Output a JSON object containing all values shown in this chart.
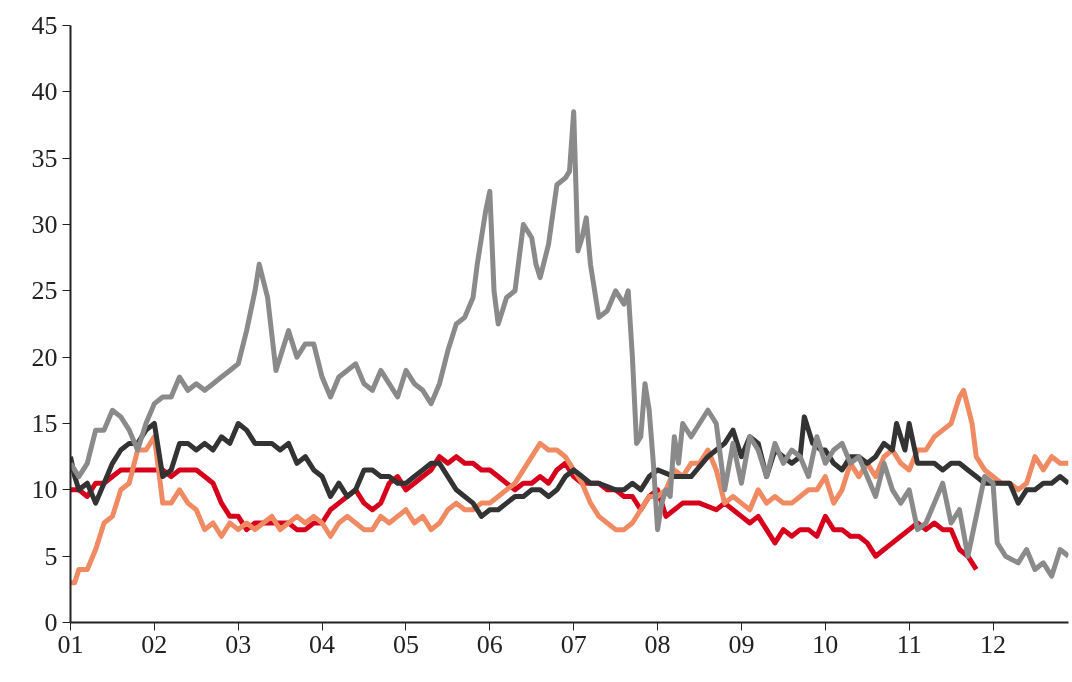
{
  "chart_data": {
    "type": "line",
    "xlim": [
      1,
      12.9
    ],
    "ylim": [
      0,
      45
    ],
    "xticks": [
      {
        "value": 1,
        "label": "01"
      },
      {
        "value": 2,
        "label": "02"
      },
      {
        "value": 3,
        "label": "03"
      },
      {
        "value": 4,
        "label": "04"
      },
      {
        "value": 5,
        "label": "05"
      },
      {
        "value": 6,
        "label": "06"
      },
      {
        "value": 7,
        "label": "07"
      },
      {
        "value": 8,
        "label": "08"
      },
      {
        "value": 9,
        "label": "09"
      },
      {
        "value": 10,
        "label": "10"
      },
      {
        "value": 11,
        "label": "11"
      },
      {
        "value": 12,
        "label": "12"
      }
    ],
    "yticks": [
      0,
      5,
      10,
      15,
      20,
      25,
      30,
      35,
      40,
      45
    ],
    "grid": false,
    "line_style": "solid",
    "marker": "none",
    "series": [
      {
        "color": "#d7001c",
        "x": [
          1.0,
          1.1,
          1.2,
          1.3,
          1.4,
          1.5,
          1.6,
          1.8,
          2.0,
          2.1,
          2.2,
          2.3,
          2.4,
          2.5,
          2.6,
          2.7,
          2.8,
          2.9,
          3.0,
          3.1,
          3.2,
          3.4,
          3.6,
          3.7,
          3.8,
          3.9,
          4.0,
          4.1,
          4.2,
          4.3,
          4.4,
          4.5,
          4.6,
          4.7,
          4.8,
          4.9,
          5.0,
          5.1,
          5.2,
          5.3,
          5.4,
          5.5,
          5.6,
          5.7,
          5.8,
          5.9,
          6.0,
          6.1,
          6.2,
          6.3,
          6.4,
          6.5,
          6.6,
          6.7,
          6.8,
          6.9,
          7.0,
          7.1,
          7.2,
          7.3,
          7.4,
          7.5,
          7.6,
          7.7,
          7.8,
          7.9,
          8.0,
          8.1,
          8.2,
          8.3,
          8.5,
          8.7,
          8.8,
          8.9,
          9.0,
          9.1,
          9.2,
          9.3,
          9.4,
          9.5,
          9.6,
          9.7,
          9.8,
          9.9,
          10.0,
          10.1,
          10.2,
          10.3,
          10.4,
          10.5,
          10.6,
          10.7,
          10.8,
          10.9,
          11.0,
          11.1,
          11.2,
          11.3,
          11.4,
          11.5,
          11.6,
          11.7,
          11.8
        ],
        "values": [
          10,
          10,
          9.5,
          10.5,
          10.5,
          11,
          11.5,
          11.5,
          11.5,
          11.5,
          11,
          11.5,
          11.5,
          11.5,
          11,
          10.5,
          9,
          8,
          8,
          7,
          7.5,
          7.5,
          7.5,
          7,
          7,
          7.5,
          7.5,
          8.5,
          9,
          9.5,
          10,
          9,
          8.5,
          9,
          10.5,
          11,
          10,
          10.5,
          11,
          11.5,
          12.5,
          12,
          12.5,
          12,
          12,
          11.5,
          11.5,
          11,
          10.5,
          10,
          10.5,
          10.5,
          11,
          10.5,
          11.5,
          12,
          11,
          10.5,
          10.5,
          10.5,
          10,
          10,
          9.5,
          9.5,
          8.5,
          9.5,
          10,
          8,
          8.5,
          9,
          9,
          8.5,
          9,
          8.5,
          8,
          7.5,
          8,
          7,
          6,
          7,
          6.5,
          7,
          7,
          6.5,
          8,
          7,
          7,
          6.5,
          6.5,
          6,
          5,
          5.5,
          6,
          6.5,
          7,
          7.5,
          7,
          7.5,
          7,
          7,
          5.5,
          5,
          4
        ]
      },
      {
        "color": "#ef8a62",
        "x": [
          1.0,
          1.05,
          1.1,
          1.2,
          1.3,
          1.4,
          1.5,
          1.6,
          1.7,
          1.8,
          1.9,
          2.0,
          2.1,
          2.2,
          2.3,
          2.4,
          2.5,
          2.6,
          2.7,
          2.8,
          2.9,
          3.0,
          3.1,
          3.2,
          3.3,
          3.4,
          3.5,
          3.6,
          3.7,
          3.8,
          3.9,
          4.0,
          4.1,
          4.2,
          4.3,
          4.4,
          4.5,
          4.6,
          4.7,
          4.8,
          4.9,
          5.0,
          5.1,
          5.2,
          5.3,
          5.4,
          5.5,
          5.6,
          5.7,
          5.8,
          5.9,
          6.0,
          6.1,
          6.2,
          6.3,
          6.4,
          6.5,
          6.6,
          6.7,
          6.8,
          6.9,
          7.0,
          7.1,
          7.2,
          7.3,
          7.4,
          7.5,
          7.6,
          7.7,
          7.8,
          7.9,
          8.0,
          8.1,
          8.2,
          8.3,
          8.4,
          8.5,
          8.6,
          8.7,
          8.8,
          8.9,
          9.0,
          9.1,
          9.2,
          9.3,
          9.4,
          9.5,
          9.6,
          9.7,
          9.8,
          9.9,
          10.0,
          10.1,
          10.2,
          10.3,
          10.4,
          10.5,
          10.6,
          10.7,
          10.8,
          10.9,
          11.0,
          11.1,
          11.2,
          11.3,
          11.4,
          11.5,
          11.6,
          11.65,
          11.75,
          11.8,
          11.9,
          12.0,
          12.1,
          12.2,
          12.3,
          12.4,
          12.5,
          12.6,
          12.7,
          12.8,
          12.9
        ],
        "values": [
          3,
          3,
          4,
          4,
          5.5,
          7.5,
          8,
          10,
          10.5,
          13,
          13,
          14,
          9,
          9,
          10,
          9,
          8.5,
          7,
          7.5,
          6.5,
          7.5,
          7,
          7.5,
          7,
          7.5,
          8,
          7,
          7.5,
          8,
          7.5,
          8,
          7.5,
          6.5,
          7.5,
          8,
          7.5,
          7,
          7,
          8,
          7.5,
          8,
          8.5,
          7.5,
          8,
          7,
          7.5,
          8.5,
          9,
          8.5,
          8.5,
          9,
          9,
          9.5,
          10,
          10.5,
          11.5,
          12.5,
          13.5,
          13,
          13,
          12.5,
          11.5,
          10.5,
          9,
          8,
          7.5,
          7,
          7,
          7.5,
          8.5,
          9.5,
          9.5,
          10,
          11.5,
          11,
          12,
          12,
          13,
          11.5,
          9,
          9.5,
          9,
          8.5,
          10,
          9,
          9.5,
          9,
          9,
          9.5,
          10,
          10,
          11,
          9,
          10,
          12,
          11,
          12,
          11,
          12.5,
          13,
          12,
          11.5,
          13,
          13,
          14,
          14.5,
          15,
          17,
          17.5,
          15,
          12.5,
          11.5,
          11,
          10.5,
          10.5,
          10,
          10.5,
          12.5,
          11.5,
          12.5,
          12,
          12
        ]
      },
      {
        "color": "#333333",
        "x": [
          1.0,
          1.05,
          1.1,
          1.2,
          1.3,
          1.4,
          1.5,
          1.6,
          1.7,
          1.8,
          1.9,
          2.0,
          2.1,
          2.2,
          2.3,
          2.4,
          2.5,
          2.6,
          2.7,
          2.8,
          2.9,
          3.0,
          3.1,
          3.2,
          3.3,
          3.4,
          3.5,
          3.6,
          3.7,
          3.8,
          3.9,
          4.0,
          4.1,
          4.2,
          4.3,
          4.4,
          4.5,
          4.6,
          4.7,
          4.8,
          4.9,
          5.0,
          5.1,
          5.2,
          5.3,
          5.4,
          5.5,
          5.6,
          5.7,
          5.8,
          5.9,
          6.0,
          6.1,
          6.2,
          6.3,
          6.4,
          6.5,
          6.6,
          6.7,
          6.8,
          6.9,
          7.0,
          7.1,
          7.2,
          7.3,
          7.5,
          7.6,
          7.7,
          7.8,
          7.9,
          8.0,
          8.2,
          8.4,
          8.6,
          8.7,
          8.8,
          8.9,
          9.0,
          9.1,
          9.2,
          9.3,
          9.4,
          9.5,
          9.6,
          9.7,
          9.75,
          9.85,
          9.95,
          10.0,
          10.1,
          10.2,
          10.3,
          10.4,
          10.5,
          10.6,
          10.7,
          10.8,
          10.85,
          10.95,
          11.0,
          11.1,
          11.2,
          11.3,
          11.4,
          11.5,
          11.6,
          11.7,
          11.8,
          11.9,
          12.0,
          12.1,
          12.2,
          12.3,
          12.4,
          12.5,
          12.6,
          12.7,
          12.8,
          12.9
        ],
        "values": [
          12.5,
          11,
          10,
          10.5,
          9,
          10.5,
          12,
          13,
          13.5,
          13.5,
          14.5,
          15,
          11,
          11.5,
          13.5,
          13.5,
          13,
          13.5,
          13,
          14,
          13.5,
          15,
          14.5,
          13.5,
          13.5,
          13.5,
          13,
          13.5,
          12,
          12.5,
          11.5,
          11,
          9.5,
          10.5,
          9.5,
          10,
          11.5,
          11.5,
          11,
          11,
          10.5,
          10.5,
          11,
          11.5,
          12,
          12,
          11,
          10,
          9.5,
          9,
          8,
          8.5,
          8.5,
          9,
          9.5,
          9.5,
          10,
          10,
          9.5,
          10,
          11,
          11.5,
          11,
          10.5,
          10.5,
          10,
          10,
          10.5,
          10,
          11,
          11.5,
          11,
          11,
          12.5,
          13,
          13.5,
          14.5,
          12.5,
          14,
          13.5,
          11,
          13,
          12.5,
          12,
          12.5,
          15.5,
          13.5,
          13,
          13,
          12,
          11.5,
          12.5,
          12.5,
          12,
          12.5,
          13.5,
          13,
          15,
          13,
          15,
          12,
          12,
          12,
          11.5,
          12,
          12,
          11.5,
          11,
          10.5,
          10.5,
          10.5,
          10.5,
          9,
          10,
          10,
          10.5,
          10.5,
          11,
          10.5
        ]
      },
      {
        "color": "#8a8a8a",
        "x": [
          1.0,
          1.1,
          1.2,
          1.3,
          1.4,
          1.5,
          1.6,
          1.7,
          1.8,
          1.9,
          2.0,
          2.1,
          2.2,
          2.3,
          2.4,
          2.5,
          2.6,
          2.7,
          2.8,
          2.9,
          3.0,
          3.1,
          3.2,
          3.25,
          3.35,
          3.45,
          3.55,
          3.6,
          3.7,
          3.8,
          3.9,
          4.0,
          4.1,
          4.2,
          4.3,
          4.4,
          4.5,
          4.6,
          4.7,
          4.8,
          4.9,
          5.0,
          5.1,
          5.2,
          5.3,
          5.4,
          5.5,
          5.6,
          5.7,
          5.8,
          5.85,
          5.95,
          6.0,
          6.05,
          6.1,
          6.2,
          6.3,
          6.4,
          6.5,
          6.55,
          6.6,
          6.7,
          6.8,
          6.9,
          6.95,
          7.0,
          7.05,
          7.1,
          7.15,
          7.2,
          7.3,
          7.4,
          7.5,
          7.6,
          7.65,
          7.7,
          7.75,
          7.8,
          7.85,
          7.9,
          7.95,
          8.0,
          8.05,
          8.1,
          8.15,
          8.2,
          8.25,
          8.3,
          8.4,
          8.5,
          8.6,
          8.7,
          8.8,
          8.9,
          9.0,
          9.1,
          9.2,
          9.3,
          9.4,
          9.5,
          9.6,
          9.7,
          9.8,
          9.9,
          10.0,
          10.1,
          10.2,
          10.3,
          10.4,
          10.5,
          10.6,
          10.7,
          10.8,
          10.9,
          11.0,
          11.1,
          11.2,
          11.3,
          11.4,
          11.5,
          11.6,
          11.7,
          11.8,
          11.9,
          12.0,
          12.05,
          12.15,
          12.3,
          12.4,
          12.5,
          12.6,
          12.7,
          12.8,
          12.9
        ],
        "values": [
          12,
          11,
          12,
          14.5,
          14.5,
          16,
          15.5,
          14.5,
          13,
          15,
          16.5,
          17,
          17,
          18.5,
          17.5,
          18,
          17.5,
          18,
          18.5,
          19,
          19.5,
          22,
          25,
          27,
          24.5,
          19,
          21,
          22,
          20,
          21,
          21,
          18.5,
          17,
          18.5,
          19,
          19.5,
          18,
          17.5,
          19,
          18,
          17,
          19,
          18,
          17.5,
          16.5,
          18,
          20.5,
          22.5,
          23,
          24.5,
          27,
          31,
          32.5,
          25,
          22.5,
          24.5,
          25,
          30,
          29,
          27,
          26,
          28.5,
          33,
          33.5,
          34,
          38.5,
          28,
          29,
          30.5,
          27,
          23,
          23.5,
          25,
          24,
          25,
          20,
          13.5,
          14,
          18,
          16,
          12,
          7,
          9,
          10,
          9.5,
          14,
          12,
          15,
          14,
          15,
          16,
          15,
          10,
          13.5,
          10.5,
          14,
          13,
          11,
          13.5,
          12,
          13,
          12.5,
          11,
          14,
          12,
          13,
          13.5,
          12,
          12.5,
          11,
          9.5,
          12,
          10,
          9,
          10,
          7,
          7.5,
          9,
          10.5,
          7.5,
          8.5,
          5,
          8,
          11,
          10.5,
          6,
          5,
          4.5,
          5.5,
          4,
          4.5,
          3.5,
          5.5,
          5
        ]
      }
    ]
  }
}
